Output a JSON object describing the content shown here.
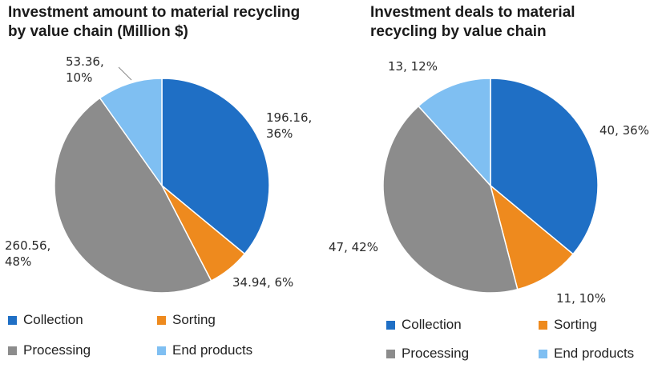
{
  "colors": {
    "Collection": "#1f6fc5",
    "Sorting": "#ee8a1e",
    "Processing": "#8c8c8c",
    "End products": "#7fbff2"
  },
  "chart_data": [
    {
      "type": "pie",
      "title": "Investment amount to material recycling by value chain (Million $)",
      "categories": [
        "Collection",
        "Sorting",
        "Processing",
        "End products"
      ],
      "values": [
        196.16,
        34.94,
        260.56,
        53.36
      ],
      "percents": [
        36,
        6,
        48,
        10
      ],
      "labels": [
        "196.16, 36%",
        "34.94, 6%",
        "260.56, 48%",
        "53.36, 10%"
      ],
      "legend": "bottom"
    },
    {
      "type": "pie",
      "title": "Investment deals to material recycling by value chain",
      "categories": [
        "Collection",
        "Sorting",
        "Processing",
        "End products"
      ],
      "values": [
        40,
        11,
        47,
        13
      ],
      "percents": [
        36,
        10,
        42,
        12
      ],
      "labels": [
        "40, 36%",
        "11, 10%",
        "47, 42%",
        "13, 12%"
      ],
      "legend": "bottom"
    }
  ]
}
